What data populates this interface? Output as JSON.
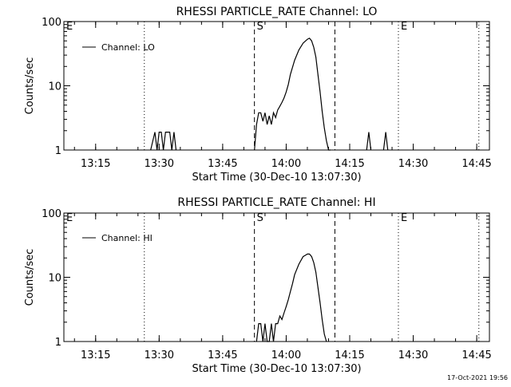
{
  "footer": {
    "timestamp": "17-Oct-2021 19:56"
  },
  "chart_data": [
    {
      "type": "line",
      "title": "RHESSI PARTICLE_RATE Channel: LO",
      "xlabel": "Start Time (30-Dec-10 13:07:30)",
      "ylabel": "Counts/sec",
      "legend": "Channel: LO",
      "legend_placement": "top-left",
      "y_scale": "log",
      "ylim": [
        1,
        100
      ],
      "xlim": [
        "13:07:30",
        "14:48:00"
      ],
      "x_ticks": [
        "13:15",
        "13:30",
        "13:45",
        "14:00",
        "14:15",
        "14:30",
        "14:45"
      ],
      "y_ticks": [
        "1",
        "10",
        "100"
      ],
      "markers": [
        {
          "time": "13:07:30",
          "label": "E",
          "style": "none"
        },
        {
          "time": "13:26:30",
          "label": "",
          "style": "dotted"
        },
        {
          "time": "13:52:30",
          "label": "S",
          "style": "dashed"
        },
        {
          "time": "14:11:30",
          "label": "",
          "style": "dashed"
        },
        {
          "time": "14:26:30",
          "label": "E",
          "style": "dotted"
        },
        {
          "time": "14:45:30",
          "label": "",
          "style": "dotted"
        }
      ],
      "series": [
        {
          "name": "Channel: LO",
          "x": [
            "13:28:00",
            "13:29:00",
            "13:29:30",
            "13:30:00",
            "13:30:30",
            "13:31:00",
            "13:31:30",
            "13:32:00",
            "13:32:30",
            "13:33:00",
            "13:33:30",
            "13:34:00",
            "13:52:30",
            "13:53:00",
            "13:53:30",
            "13:54:00",
            "13:54:30",
            "13:55:00",
            "13:55:30",
            "13:56:00",
            "13:56:30",
            "13:57:00",
            "13:57:30",
            "13:58:00",
            "13:58:30",
            "13:59:00",
            "13:59:30",
            "14:00:00",
            "14:00:30",
            "14:01:00",
            "14:02:00",
            "14:03:00",
            "14:04:00",
            "14:05:00",
            "14:05:30",
            "14:06:00",
            "14:06:30",
            "14:07:00",
            "14:07:30",
            "14:08:00",
            "14:08:30",
            "14:09:00",
            "14:09:30",
            "14:10:00",
            "14:10:30",
            "14:19:00",
            "14:19:30",
            "14:20:00",
            "14:23:00",
            "14:23:30",
            "14:24:00"
          ],
          "values": [
            1,
            1.9,
            1,
            1.9,
            1.9,
            1,
            1.9,
            1.9,
            1.9,
            1,
            1.9,
            1,
            1,
            2.5,
            3.8,
            3.8,
            2.8,
            3.8,
            2.5,
            3.4,
            2.5,
            3.8,
            3.2,
            4.2,
            4.8,
            5.5,
            6.5,
            8,
            10.5,
            15,
            25,
            36,
            46,
            53,
            55,
            50,
            40,
            28,
            15,
            8,
            4,
            2.2,
            1.4,
            1,
            1,
            1,
            1.9,
            1,
            1,
            1.9,
            1
          ]
        }
      ]
    },
    {
      "type": "line",
      "title": "RHESSI PARTICLE_RATE Channel: HI",
      "xlabel": "Start Time (30-Dec-10 13:07:30)",
      "ylabel": "Counts/sec",
      "legend": "Channel: HI",
      "legend_placement": "top-left",
      "y_scale": "log",
      "ylim": [
        1,
        100
      ],
      "xlim": [
        "13:07:30",
        "14:48:00"
      ],
      "x_ticks": [
        "13:15",
        "13:30",
        "13:45",
        "14:00",
        "14:15",
        "14:30",
        "14:45"
      ],
      "y_ticks": [
        "1",
        "10",
        "100"
      ],
      "markers": [
        {
          "time": "13:07:30",
          "label": "E",
          "style": "none"
        },
        {
          "time": "13:26:30",
          "label": "",
          "style": "dotted"
        },
        {
          "time": "13:52:30",
          "label": "S",
          "style": "dashed"
        },
        {
          "time": "14:11:30",
          "label": "",
          "style": "dashed"
        },
        {
          "time": "14:26:30",
          "label": "E",
          "style": "dotted"
        },
        {
          "time": "14:45:30",
          "label": "",
          "style": "dotted"
        }
      ],
      "series": [
        {
          "name": "Channel: HI",
          "x": [
            "13:53:00",
            "13:53:30",
            "13:54:00",
            "13:54:30",
            "13:55:00",
            "13:55:30",
            "13:56:00",
            "13:56:30",
            "13:57:00",
            "13:57:30",
            "13:58:00",
            "13:58:30",
            "13:59:00",
            "13:59:30",
            "14:00:00",
            "14:00:30",
            "14:01:00",
            "14:01:30",
            "14:02:00",
            "14:03:00",
            "14:04:00",
            "14:05:00",
            "14:05:30",
            "14:06:00",
            "14:06:30",
            "14:07:00",
            "14:07:30",
            "14:08:00",
            "14:08:30",
            "14:09:00",
            "14:09:30"
          ],
          "values": [
            1,
            1.9,
            1.9,
            1,
            1.9,
            1,
            1,
            1.9,
            1,
            1.9,
            1.9,
            2.5,
            2.2,
            2.8,
            3.5,
            4.5,
            6,
            8,
            11,
            16,
            21,
            23,
            23,
            21,
            17,
            12,
            7,
            4,
            2.2,
            1.3,
            1
          ]
        }
      ]
    }
  ]
}
